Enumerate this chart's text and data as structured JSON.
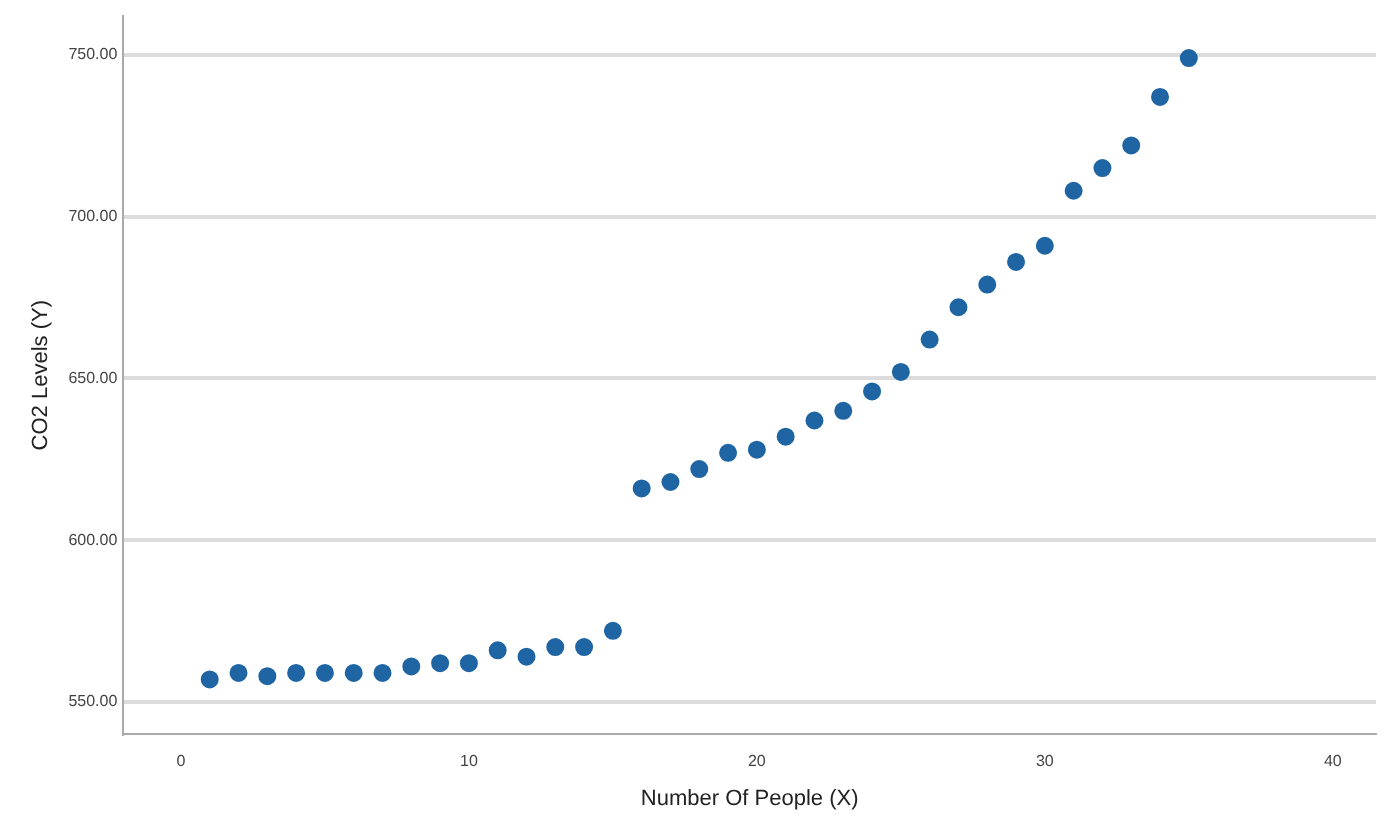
{
  "chart_data": {
    "type": "scatter",
    "xlabel": "Number Of People (X)",
    "ylabel": "CO2 Levels (Y)",
    "x": [
      1,
      2,
      3,
      4,
      5,
      6,
      7,
      8,
      9,
      10,
      11,
      12,
      13,
      14,
      15,
      16,
      17,
      18,
      19,
      20,
      21,
      22,
      23,
      24,
      25,
      26,
      27,
      28,
      29,
      30,
      31,
      32,
      33,
      34,
      35
    ],
    "series": [
      {
        "color": "#1f65a3",
        "values": [
          557,
          559,
          558,
          559,
          559,
          559,
          559,
          561,
          562,
          562,
          566,
          564,
          567,
          567,
          572,
          616,
          618,
          622,
          627,
          628,
          632,
          637,
          640,
          646,
          652,
          662,
          672,
          679,
          686,
          691,
          708,
          715,
          722,
          737,
          749
        ]
      }
    ],
    "xlim": [
      -2,
      41.5
    ],
    "xticks": [
      0,
      10,
      20,
      30,
      40
    ],
    "ylim": [
      540,
      762
    ],
    "yticks": [
      {
        "value": 550,
        "label": "550.00"
      },
      {
        "value": 600,
        "label": "600.00"
      },
      {
        "value": 650,
        "label": "650.00"
      },
      {
        "value": 700,
        "label": "700.00"
      },
      {
        "value": 750,
        "label": "750.00"
      }
    ],
    "grid": "y",
    "marker": "circle",
    "legend": false
  }
}
